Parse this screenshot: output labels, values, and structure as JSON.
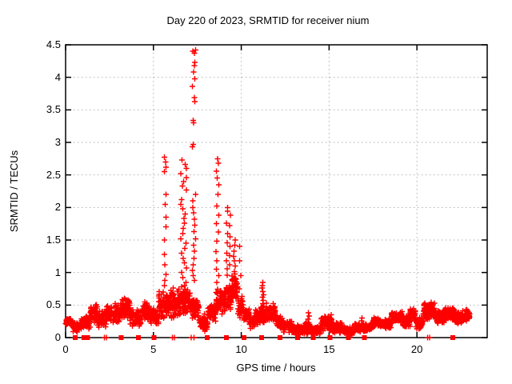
{
  "chart_data": {
    "type": "scatter",
    "title": "Day 220 of 2023, SRMTID for receiver nium",
    "xlabel": "GPS time / hours",
    "ylabel": "SRMTID / TECUs",
    "xlim": [
      0,
      24
    ],
    "ylim": [
      0,
      4.5
    ],
    "xticks": {
      "values": [
        0,
        5,
        10,
        15,
        20
      ],
      "labels": [
        "0",
        "5",
        "10",
        "15",
        "20"
      ]
    },
    "yticks": {
      "values": [
        0,
        0.5,
        1,
        1.5,
        2,
        2.5,
        3,
        3.5,
        4,
        4.5
      ],
      "labels": [
        "0",
        "0.5",
        "1",
        "1.5",
        "2",
        "2.5",
        "3",
        "3.5",
        "4",
        "4.5"
      ]
    },
    "grid": true,
    "legend": false,
    "marker": "plus",
    "point_color": "#ff0000",
    "grid_color": "#b0b0b0",
    "frame_color": "#000000",
    "noise_band_segments": [
      [
        0.0,
        0.35,
        0.18,
        0.32,
        150
      ],
      [
        0.35,
        0.9,
        0.08,
        0.26,
        120
      ],
      [
        0.9,
        1.4,
        0.12,
        0.35,
        130
      ],
      [
        1.4,
        1.8,
        0.22,
        0.52,
        140
      ],
      [
        1.8,
        2.3,
        0.15,
        0.42,
        130
      ],
      [
        2.3,
        2.65,
        0.22,
        0.5,
        140
      ],
      [
        2.65,
        3.1,
        0.18,
        0.55,
        140
      ],
      [
        3.1,
        3.65,
        0.25,
        0.62,
        140
      ],
      [
        3.65,
        4.3,
        0.15,
        0.45,
        130
      ],
      [
        4.3,
        4.8,
        0.25,
        0.55,
        140
      ],
      [
        4.8,
        5.3,
        0.18,
        0.5,
        140
      ],
      [
        5.3,
        5.95,
        0.28,
        0.72,
        150
      ],
      [
        5.95,
        6.55,
        0.28,
        0.78,
        160
      ],
      [
        6.55,
        7.1,
        0.35,
        0.85,
        160
      ],
      [
        7.1,
        7.6,
        0.28,
        0.62,
        150
      ],
      [
        7.6,
        8.1,
        0.08,
        0.38,
        130
      ],
      [
        8.1,
        8.55,
        0.2,
        0.55,
        140
      ],
      [
        8.55,
        9.1,
        0.35,
        0.8,
        150
      ],
      [
        9.1,
        9.45,
        0.4,
        0.85,
        150
      ],
      [
        9.45,
        9.8,
        0.45,
        1.1,
        160
      ],
      [
        9.8,
        10.1,
        0.28,
        0.65,
        140
      ],
      [
        10.1,
        10.45,
        0.22,
        0.5,
        130
      ],
      [
        10.45,
        10.8,
        0.12,
        0.35,
        130
      ],
      [
        10.8,
        11.1,
        0.18,
        0.45,
        130
      ],
      [
        11.1,
        11.4,
        0.2,
        0.5,
        140
      ],
      [
        11.4,
        11.95,
        0.22,
        0.55,
        140
      ],
      [
        11.95,
        12.4,
        0.12,
        0.38,
        130
      ],
      [
        12.4,
        12.9,
        0.06,
        0.28,
        130
      ],
      [
        12.9,
        13.6,
        0.04,
        0.2,
        130
      ],
      [
        13.6,
        14.0,
        0.05,
        0.25,
        130
      ],
      [
        14.0,
        14.55,
        0.04,
        0.2,
        130
      ],
      [
        14.55,
        15.15,
        0.08,
        0.38,
        140
      ],
      [
        15.15,
        15.75,
        0.05,
        0.25,
        130
      ],
      [
        15.75,
        16.45,
        0.03,
        0.18,
        130
      ],
      [
        16.45,
        16.95,
        0.05,
        0.25,
        130
      ],
      [
        16.95,
        17.45,
        0.08,
        0.22,
        130
      ],
      [
        17.45,
        18.15,
        0.14,
        0.32,
        140
      ],
      [
        18.15,
        18.55,
        0.12,
        0.3,
        140
      ],
      [
        18.55,
        19.15,
        0.2,
        0.42,
        150
      ],
      [
        19.15,
        19.6,
        0.15,
        0.35,
        140
      ],
      [
        19.6,
        19.95,
        0.24,
        0.48,
        150
      ],
      [
        19.95,
        20.35,
        0.12,
        0.32,
        140
      ],
      [
        20.35,
        21.05,
        0.26,
        0.55,
        150
      ],
      [
        21.05,
        21.55,
        0.2,
        0.42,
        150
      ],
      [
        21.55,
        22.15,
        0.24,
        0.48,
        150
      ],
      [
        22.15,
        22.6,
        0.18,
        0.4,
        150
      ],
      [
        22.6,
        23.0,
        0.24,
        0.45,
        150
      ]
    ],
    "spike_columns": [
      {
        "t": 5.67,
        "spread": 0.06,
        "values": [
          2.77,
          2.7,
          2.62,
          2.55,
          2.2,
          2.05,
          1.85,
          1.7,
          1.5,
          1.28,
          1.12,
          0.97,
          0.88,
          0.8
        ]
      },
      {
        "t": 6.72,
        "spread": 0.18,
        "values": [
          2.73,
          2.66,
          2.6,
          2.52,
          2.46,
          2.4,
          2.33,
          2.27,
          2.12,
          2.05,
          1.98,
          1.9,
          1.83,
          1.76,
          1.68,
          1.6,
          1.52,
          1.45,
          1.37,
          1.3,
          1.22,
          1.15,
          1.07,
          1.0,
          0.92,
          0.85
        ]
      },
      {
        "t": 7.3,
        "spread": 0.1,
        "values": [
          4.42,
          4.4,
          4.37,
          4.23,
          4.18,
          4.08,
          3.98,
          3.86,
          3.69,
          3.63,
          3.34,
          3.3,
          2.97,
          2.93,
          2.2,
          2.1,
          2.0,
          1.92,
          1.82,
          1.73,
          1.63,
          1.52,
          1.42,
          1.33,
          1.22,
          1.12,
          1.03,
          0.95,
          0.88
        ]
      },
      {
        "t": 8.65,
        "spread": 0.08,
        "values": [
          2.75,
          2.68,
          2.56,
          2.45,
          2.35,
          2.2,
          2.02,
          1.88,
          1.75,
          1.62,
          1.48,
          1.32,
          1.18,
          1.05,
          0.95,
          0.85
        ]
      },
      {
        "t": 9.22,
        "spread": 0.07,
        "values": [
          2.0,
          1.94,
          1.76,
          1.6,
          1.46,
          1.3,
          1.18,
          1.06,
          0.96
        ]
      },
      {
        "t": 9.38,
        "spread": 0.05,
        "values": [
          1.88,
          1.72,
          1.55,
          1.4,
          1.26,
          1.12
        ]
      },
      {
        "t": 9.62,
        "spread": 0.06,
        "values": [
          1.5,
          1.42,
          1.33,
          1.25,
          1.18,
          1.1
        ]
      },
      {
        "t": 9.92,
        "spread": 0.05,
        "values": [
          1.4,
          1.18,
          0.95,
          0.75
        ]
      },
      {
        "t": 11.22,
        "spread": 0.05,
        "values": [
          0.85,
          0.8,
          0.76,
          0.71,
          0.66,
          0.62,
          0.57,
          0.52,
          0.47,
          0.42,
          0.37,
          0.32
        ]
      },
      {
        "t": 13.82,
        "spread": 0.04,
        "values": [
          0.38,
          0.33,
          0.28,
          0.23
        ]
      },
      {
        "t": 16.85,
        "spread": 0.04,
        "values": [
          0.3,
          0.26,
          0.21
        ]
      }
    ],
    "zero_markers_squares": [
      0.55,
      1.05,
      1.25,
      3.17,
      4.15,
      5.03,
      8.05,
      9.15,
      10.15,
      11.15,
      12.2,
      13.2,
      14.1,
      15.05,
      16.1,
      17.0,
      22.05
    ],
    "zero_markers_plus": [
      2.2,
      2.32,
      6.08,
      6.2,
      7.15,
      7.3,
      20.6,
      20.72
    ]
  }
}
